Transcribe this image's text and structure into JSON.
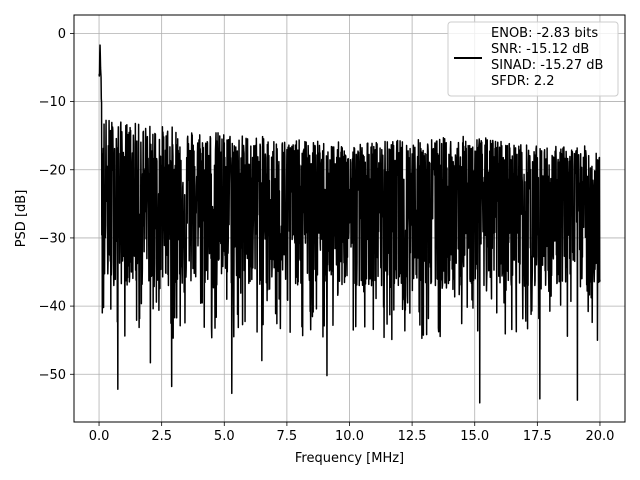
{
  "chart_data": {
    "type": "line",
    "xlabel": "Frequency [MHz]",
    "ylabel": "PSD [dB]",
    "xlim": [
      -1.0,
      21.0
    ],
    "ylim": [
      -57.0,
      2.7
    ],
    "xticks": [
      0.0,
      2.5,
      5.0,
      7.5,
      10.0,
      12.5,
      15.0,
      17.5,
      20.0
    ],
    "xtick_labels": [
      "0.0",
      "2.5",
      "5.0",
      "7.5",
      "10.0",
      "12.5",
      "15.0",
      "17.5",
      "20.0"
    ],
    "yticks": [
      0,
      -10,
      -20,
      -30,
      -40,
      -50
    ],
    "ytick_labels": [
      "0",
      "−10",
      "−20",
      "−30",
      "−40",
      "−50"
    ],
    "grid": true,
    "legend_position": "top-right",
    "series": [
      {
        "color": "#000000",
        "x_range": [
          0.0,
          20.0
        ],
        "peak": {
          "x": 0.04,
          "y": 0.0
        },
        "noise_floor_mean": -24.5,
        "noise_upper_envelope": [
          [
            0.0,
            -12.0
          ],
          [
            1.0,
            -13.0
          ],
          [
            2.5,
            -13.5
          ],
          [
            5.0,
            -14.5
          ],
          [
            7.5,
            -15.5
          ],
          [
            10.0,
            -16.0
          ],
          [
            12.5,
            -15.5
          ],
          [
            15.0,
            -15.0
          ],
          [
            17.5,
            -16.5
          ],
          [
            20.0,
            -16.5
          ]
        ],
        "minima": [
          [
            0.13,
            -41.0
          ],
          [
            0.75,
            -52.2
          ],
          [
            2.05,
            -48.3
          ],
          [
            2.9,
            -51.8
          ],
          [
            5.3,
            -52.8
          ],
          [
            6.5,
            -48.0
          ],
          [
            9.1,
            -50.2
          ],
          [
            15.2,
            -54.2
          ],
          [
            17.6,
            -53.6
          ],
          [
            19.1,
            -53.8
          ],
          [
            19.9,
            -45.0
          ]
        ]
      }
    ],
    "legend": {
      "lines": [
        "ENOB: -2.83 bits",
        "SNR: -15.12 dB",
        "SINAD: -15.27 dB",
        "SFDR: 2.2"
      ]
    }
  }
}
